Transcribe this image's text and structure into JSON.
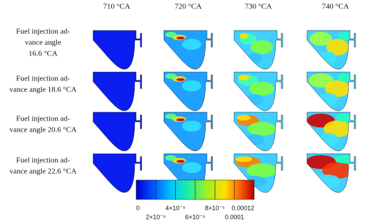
{
  "columns": [
    "710 °CA",
    "720 °CA",
    "730 °CA",
    "740 °CA"
  ],
  "rows": [
    {
      "label_lines": [
        "Fuel injection ad-",
        "vance angle",
        "16.6 °CA"
      ]
    },
    {
      "label_lines": [
        "Fuel injection ad-",
        "vance angle 18.6 °CA"
      ]
    },
    {
      "label_lines": [
        "Fuel injection ad-",
        "vance angle 20.6 °CA"
      ]
    },
    {
      "label_lines": [
        "Fuel injection ad-",
        "vance angle 22.6 °CA"
      ]
    }
  ],
  "colorbar": {
    "labels": [
      "0",
      "2×10⁻⁵",
      "4×10⁻⁵",
      "6×10⁻⁵",
      "8×10⁻⁵",
      "0.0001",
      "0.00012"
    ]
  }
}
